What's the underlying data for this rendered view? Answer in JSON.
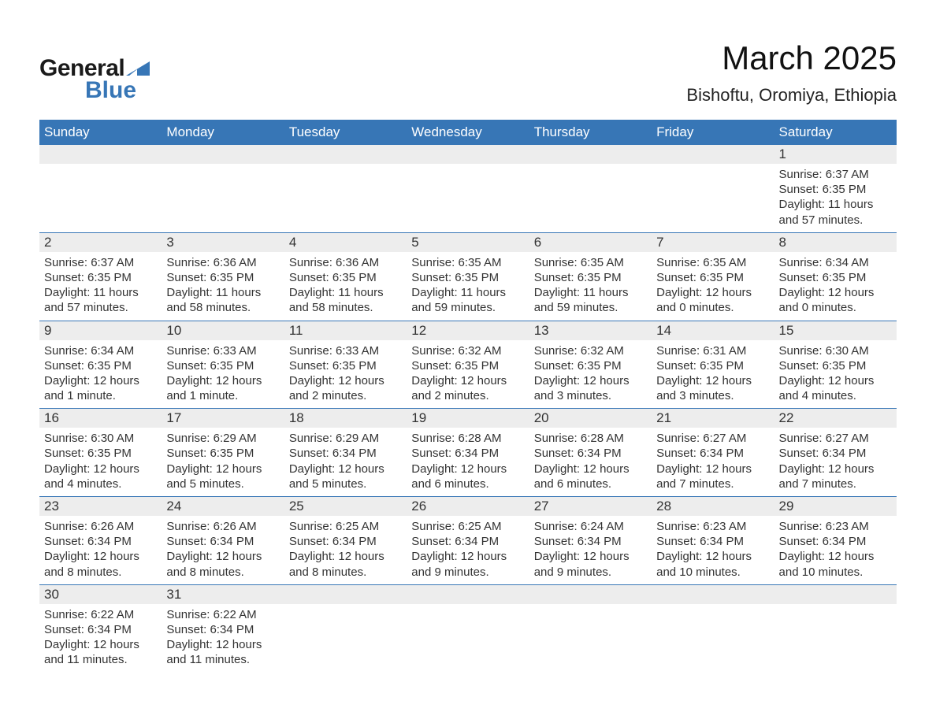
{
  "brand": {
    "word1": "General",
    "word2": "Blue",
    "triangle_color": "#3776b6",
    "word1_color": "#1a1a1a",
    "word2_color": "#3776b6"
  },
  "title": "March 2025",
  "location": "Bishoftu, Oromiya, Ethiopia",
  "colors": {
    "header_bg": "#3776b6",
    "header_text": "#ffffff",
    "daynum_bg": "#ededed",
    "row_border": "#3776b6",
    "body_text": "#333333",
    "page_bg": "#ffffff"
  },
  "typography": {
    "title_fontsize": 42,
    "location_fontsize": 22,
    "header_fontsize": 17,
    "daynum_fontsize": 17,
    "detail_fontsize": 15
  },
  "table": {
    "type": "calendar",
    "columns": [
      "Sunday",
      "Monday",
      "Tuesday",
      "Wednesday",
      "Thursday",
      "Friday",
      "Saturday"
    ],
    "weeks": [
      [
        null,
        null,
        null,
        null,
        null,
        null,
        {
          "day": "1",
          "sunrise": "Sunrise: 6:37 AM",
          "sunset": "Sunset: 6:35 PM",
          "daylight": "Daylight: 11 hours and 57 minutes."
        }
      ],
      [
        {
          "day": "2",
          "sunrise": "Sunrise: 6:37 AM",
          "sunset": "Sunset: 6:35 PM",
          "daylight": "Daylight: 11 hours and 57 minutes."
        },
        {
          "day": "3",
          "sunrise": "Sunrise: 6:36 AM",
          "sunset": "Sunset: 6:35 PM",
          "daylight": "Daylight: 11 hours and 58 minutes."
        },
        {
          "day": "4",
          "sunrise": "Sunrise: 6:36 AM",
          "sunset": "Sunset: 6:35 PM",
          "daylight": "Daylight: 11 hours and 58 minutes."
        },
        {
          "day": "5",
          "sunrise": "Sunrise: 6:35 AM",
          "sunset": "Sunset: 6:35 PM",
          "daylight": "Daylight: 11 hours and 59 minutes."
        },
        {
          "day": "6",
          "sunrise": "Sunrise: 6:35 AM",
          "sunset": "Sunset: 6:35 PM",
          "daylight": "Daylight: 11 hours and 59 minutes."
        },
        {
          "day": "7",
          "sunrise": "Sunrise: 6:35 AM",
          "sunset": "Sunset: 6:35 PM",
          "daylight": "Daylight: 12 hours and 0 minutes."
        },
        {
          "day": "8",
          "sunrise": "Sunrise: 6:34 AM",
          "sunset": "Sunset: 6:35 PM",
          "daylight": "Daylight: 12 hours and 0 minutes."
        }
      ],
      [
        {
          "day": "9",
          "sunrise": "Sunrise: 6:34 AM",
          "sunset": "Sunset: 6:35 PM",
          "daylight": "Daylight: 12 hours and 1 minute."
        },
        {
          "day": "10",
          "sunrise": "Sunrise: 6:33 AM",
          "sunset": "Sunset: 6:35 PM",
          "daylight": "Daylight: 12 hours and 1 minute."
        },
        {
          "day": "11",
          "sunrise": "Sunrise: 6:33 AM",
          "sunset": "Sunset: 6:35 PM",
          "daylight": "Daylight: 12 hours and 2 minutes."
        },
        {
          "day": "12",
          "sunrise": "Sunrise: 6:32 AM",
          "sunset": "Sunset: 6:35 PM",
          "daylight": "Daylight: 12 hours and 2 minutes."
        },
        {
          "day": "13",
          "sunrise": "Sunrise: 6:32 AM",
          "sunset": "Sunset: 6:35 PM",
          "daylight": "Daylight: 12 hours and 3 minutes."
        },
        {
          "day": "14",
          "sunrise": "Sunrise: 6:31 AM",
          "sunset": "Sunset: 6:35 PM",
          "daylight": "Daylight: 12 hours and 3 minutes."
        },
        {
          "day": "15",
          "sunrise": "Sunrise: 6:30 AM",
          "sunset": "Sunset: 6:35 PM",
          "daylight": "Daylight: 12 hours and 4 minutes."
        }
      ],
      [
        {
          "day": "16",
          "sunrise": "Sunrise: 6:30 AM",
          "sunset": "Sunset: 6:35 PM",
          "daylight": "Daylight: 12 hours and 4 minutes."
        },
        {
          "day": "17",
          "sunrise": "Sunrise: 6:29 AM",
          "sunset": "Sunset: 6:35 PM",
          "daylight": "Daylight: 12 hours and 5 minutes."
        },
        {
          "day": "18",
          "sunrise": "Sunrise: 6:29 AM",
          "sunset": "Sunset: 6:34 PM",
          "daylight": "Daylight: 12 hours and 5 minutes."
        },
        {
          "day": "19",
          "sunrise": "Sunrise: 6:28 AM",
          "sunset": "Sunset: 6:34 PM",
          "daylight": "Daylight: 12 hours and 6 minutes."
        },
        {
          "day": "20",
          "sunrise": "Sunrise: 6:28 AM",
          "sunset": "Sunset: 6:34 PM",
          "daylight": "Daylight: 12 hours and 6 minutes."
        },
        {
          "day": "21",
          "sunrise": "Sunrise: 6:27 AM",
          "sunset": "Sunset: 6:34 PM",
          "daylight": "Daylight: 12 hours and 7 minutes."
        },
        {
          "day": "22",
          "sunrise": "Sunrise: 6:27 AM",
          "sunset": "Sunset: 6:34 PM",
          "daylight": "Daylight: 12 hours and 7 minutes."
        }
      ],
      [
        {
          "day": "23",
          "sunrise": "Sunrise: 6:26 AM",
          "sunset": "Sunset: 6:34 PM",
          "daylight": "Daylight: 12 hours and 8 minutes."
        },
        {
          "day": "24",
          "sunrise": "Sunrise: 6:26 AM",
          "sunset": "Sunset: 6:34 PM",
          "daylight": "Daylight: 12 hours and 8 minutes."
        },
        {
          "day": "25",
          "sunrise": "Sunrise: 6:25 AM",
          "sunset": "Sunset: 6:34 PM",
          "daylight": "Daylight: 12 hours and 8 minutes."
        },
        {
          "day": "26",
          "sunrise": "Sunrise: 6:25 AM",
          "sunset": "Sunset: 6:34 PM",
          "daylight": "Daylight: 12 hours and 9 minutes."
        },
        {
          "day": "27",
          "sunrise": "Sunrise: 6:24 AM",
          "sunset": "Sunset: 6:34 PM",
          "daylight": "Daylight: 12 hours and 9 minutes."
        },
        {
          "day": "28",
          "sunrise": "Sunrise: 6:23 AM",
          "sunset": "Sunset: 6:34 PM",
          "daylight": "Daylight: 12 hours and 10 minutes."
        },
        {
          "day": "29",
          "sunrise": "Sunrise: 6:23 AM",
          "sunset": "Sunset: 6:34 PM",
          "daylight": "Daylight: 12 hours and 10 minutes."
        }
      ],
      [
        {
          "day": "30",
          "sunrise": "Sunrise: 6:22 AM",
          "sunset": "Sunset: 6:34 PM",
          "daylight": "Daylight: 12 hours and 11 minutes."
        },
        {
          "day": "31",
          "sunrise": "Sunrise: 6:22 AM",
          "sunset": "Sunset: 6:34 PM",
          "daylight": "Daylight: 12 hours and 11 minutes."
        },
        null,
        null,
        null,
        null,
        null
      ]
    ]
  }
}
